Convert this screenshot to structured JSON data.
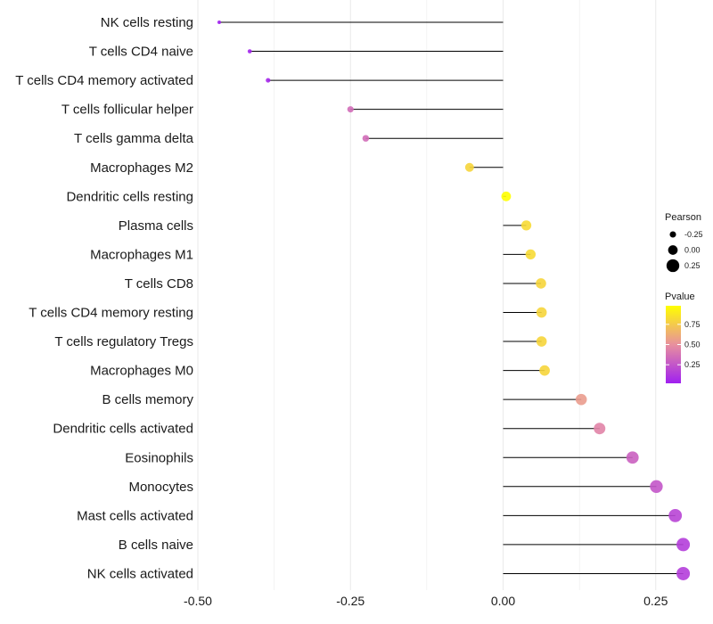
{
  "chart_data": {
    "type": "lollipop",
    "title": "",
    "xlabel": "",
    "ylabel": "",
    "xlim": [
      -0.5,
      0.3
    ],
    "x_ticks": [
      -0.5,
      -0.25,
      0.0,
      0.25
    ],
    "x_tick_labels": [
      "-0.50",
      "-0.25",
      "0.00",
      "0.25"
    ],
    "grid": true,
    "categories": [
      "NK cells resting",
      "T cells CD4 naive",
      "T cells CD4 memory activated",
      "T cells follicular helper",
      "T cells gamma delta",
      "Macrophages M2",
      "Dendritic cells resting",
      "Plasma cells",
      "Macrophages M1",
      "T cells CD8",
      "T cells CD4 memory resting",
      "T cells regulatory  Tregs",
      "Macrophages M0",
      "B cells memory",
      "Dendritic cells activated",
      "Eosinophils",
      "Monocytes",
      "Mast cells activated",
      "B cells naive",
      "NK cells activated"
    ],
    "pearson": [
      -0.465,
      -0.415,
      -0.385,
      -0.25,
      -0.225,
      -0.055,
      0.005,
      0.038,
      0.045,
      0.062,
      0.063,
      0.063,
      0.068,
      0.128,
      0.158,
      0.212,
      0.251,
      0.282,
      0.295,
      0.295
    ],
    "pvalue": [
      0.02,
      0.04,
      0.05,
      0.35,
      0.35,
      0.8,
      0.98,
      0.82,
      0.82,
      0.8,
      0.8,
      0.8,
      0.8,
      0.55,
      0.45,
      0.3,
      0.25,
      0.18,
      0.15,
      0.15
    ],
    "legend_position": "right",
    "size_legend": {
      "title": "Pearson",
      "labels": [
        "-0.25",
        "0.00",
        "0.25"
      ],
      "values": [
        -0.25,
        0.0,
        0.25
      ]
    },
    "color_legend": {
      "title": "Pvalue",
      "labels": [
        "0.75",
        "0.50",
        "0.25"
      ],
      "values": [
        0.75,
        0.5,
        0.25
      ],
      "range": [
        0.02,
        0.98
      ],
      "low_color": "#a020f0",
      "mid_color": "#e8909e",
      "high_color": "#ffff00"
    },
    "segment_color": "#000000",
    "grid_color": "#ebebeb"
  }
}
